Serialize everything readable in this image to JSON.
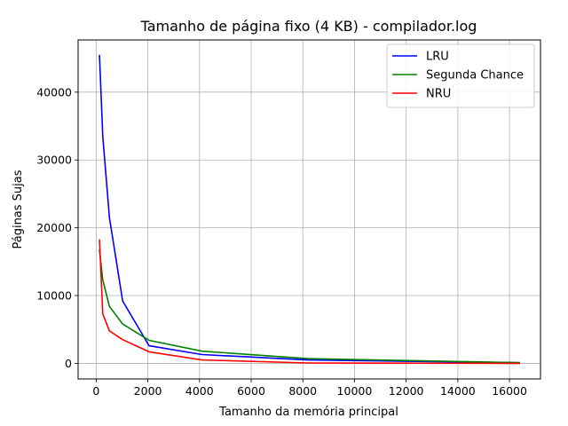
{
  "chart_data": {
    "type": "line",
    "title": "Tamanho de página fixo (4 KB) - compilador.log",
    "xlabel": "Tamanho da memória principal",
    "ylabel": "Páginas Sujas",
    "xlim": [
      -700,
      17200
    ],
    "ylim": [
      -2300,
      47700
    ],
    "xticks": [
      0,
      2000,
      4000,
      6000,
      8000,
      10000,
      12000,
      14000,
      16000
    ],
    "yticks": [
      0,
      10000,
      20000,
      30000,
      40000
    ],
    "grid": true,
    "legend_position": "top-right",
    "series": [
      {
        "name": "LRU",
        "color": "#0000ff",
        "x": [
          128,
          256,
          512,
          1024,
          2048,
          4096,
          8192,
          16384
        ],
        "y": [
          45400,
          33500,
          21500,
          9200,
          2600,
          1300,
          500,
          100
        ]
      },
      {
        "name": "Segunda Chance",
        "color": "#008000",
        "x": [
          128,
          256,
          512,
          1024,
          2048,
          4096,
          8192,
          16384
        ],
        "y": [
          16700,
          12300,
          8400,
          5800,
          3400,
          1800,
          700,
          100
        ]
      },
      {
        "name": "NRU",
        "color": "#ff0000",
        "x": [
          128,
          256,
          512,
          1024,
          2048,
          4096,
          8192,
          16384
        ],
        "y": [
          18200,
          7300,
          4800,
          3500,
          1700,
          500,
          50,
          0
        ]
      }
    ]
  }
}
